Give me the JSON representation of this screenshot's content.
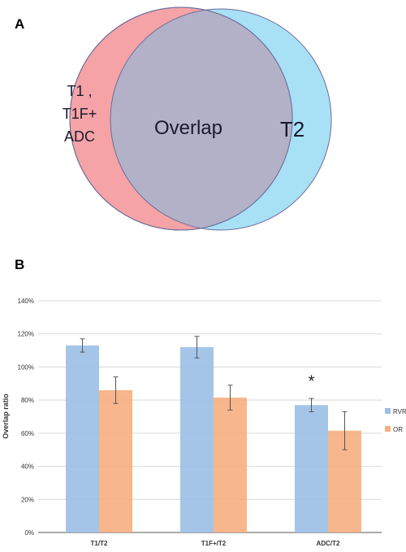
{
  "panels": {
    "a": "A",
    "b": "B"
  },
  "venn": {
    "left_label_lines": [
      "T1 ,",
      "T1F+",
      "ADC"
    ],
    "overlap_label": "Overlap",
    "right_label": "T2",
    "colors": {
      "left": "#f5a3a6",
      "right": "#a8e0f6",
      "overlap": "#b3b1c7",
      "stroke": "#6b6c9a"
    }
  },
  "chart_data": {
    "type": "bar",
    "categories": [
      "T1/T2",
      "T1F+/T2",
      "ADC/T2"
    ],
    "series": [
      {
        "name": "RVR",
        "values": [
          113,
          112,
          77
        ],
        "errors": [
          4,
          6.5,
          4
        ],
        "color": "#9bbfe6"
      },
      {
        "name": "OR",
        "values": [
          86,
          81.5,
          61.5
        ],
        "errors": [
          8,
          7.5,
          11.5
        ],
        "color": "#f6ae80"
      }
    ],
    "ylabel": "Overlap ratio",
    "ylim": [
      0,
      140
    ],
    "yticks": [
      "0%",
      "20%",
      "40%",
      "60%",
      "80%",
      "100%",
      "120%",
      "140%"
    ],
    "ytick_values": [
      0,
      20,
      40,
      60,
      80,
      100,
      120,
      140
    ],
    "annotations": [
      {
        "text": "*",
        "category_index": 2,
        "value": 92
      }
    ],
    "grid": true,
    "legend_position": "right"
  }
}
